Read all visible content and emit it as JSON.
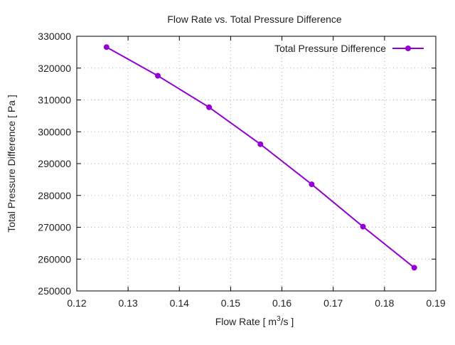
{
  "chart_data": {
    "type": "line",
    "title": "Flow Rate vs. Total Pressure Difference",
    "xlabel": "Flow Rate [ m³/s ]",
    "xlabel_base": "Flow Rate [ m",
    "xlabel_sup": "3",
    "xlabel_tail": "/s ]",
    "ylabel": "Total Pressure Difference [ Pa ]",
    "xlim": [
      0.12,
      0.19
    ],
    "ylim": [
      250000,
      330000
    ],
    "xticks": [
      "0.12",
      "0.13",
      "0.14",
      "0.15",
      "0.16",
      "0.17",
      "0.18",
      "0.19"
    ],
    "xtick_values": [
      0.12,
      0.13,
      0.14,
      0.15,
      0.16,
      0.17,
      0.18,
      0.19
    ],
    "yticks": [
      "250000",
      "260000",
      "270000",
      "280000",
      "290000",
      "300000",
      "310000",
      "320000",
      "330000"
    ],
    "ytick_values": [
      250000,
      260000,
      270000,
      280000,
      290000,
      300000,
      310000,
      320000,
      330000
    ],
    "grid": true,
    "legend_position": "top-right",
    "series": [
      {
        "name": "Total Pressure Difference",
        "color": "#9400d3",
        "x": [
          0.1258,
          0.1358,
          0.1458,
          0.1558,
          0.1658,
          0.1758,
          0.1858
        ],
        "y": [
          326600,
          317600,
          307700,
          296100,
          283500,
          270200,
          257300
        ]
      }
    ]
  }
}
